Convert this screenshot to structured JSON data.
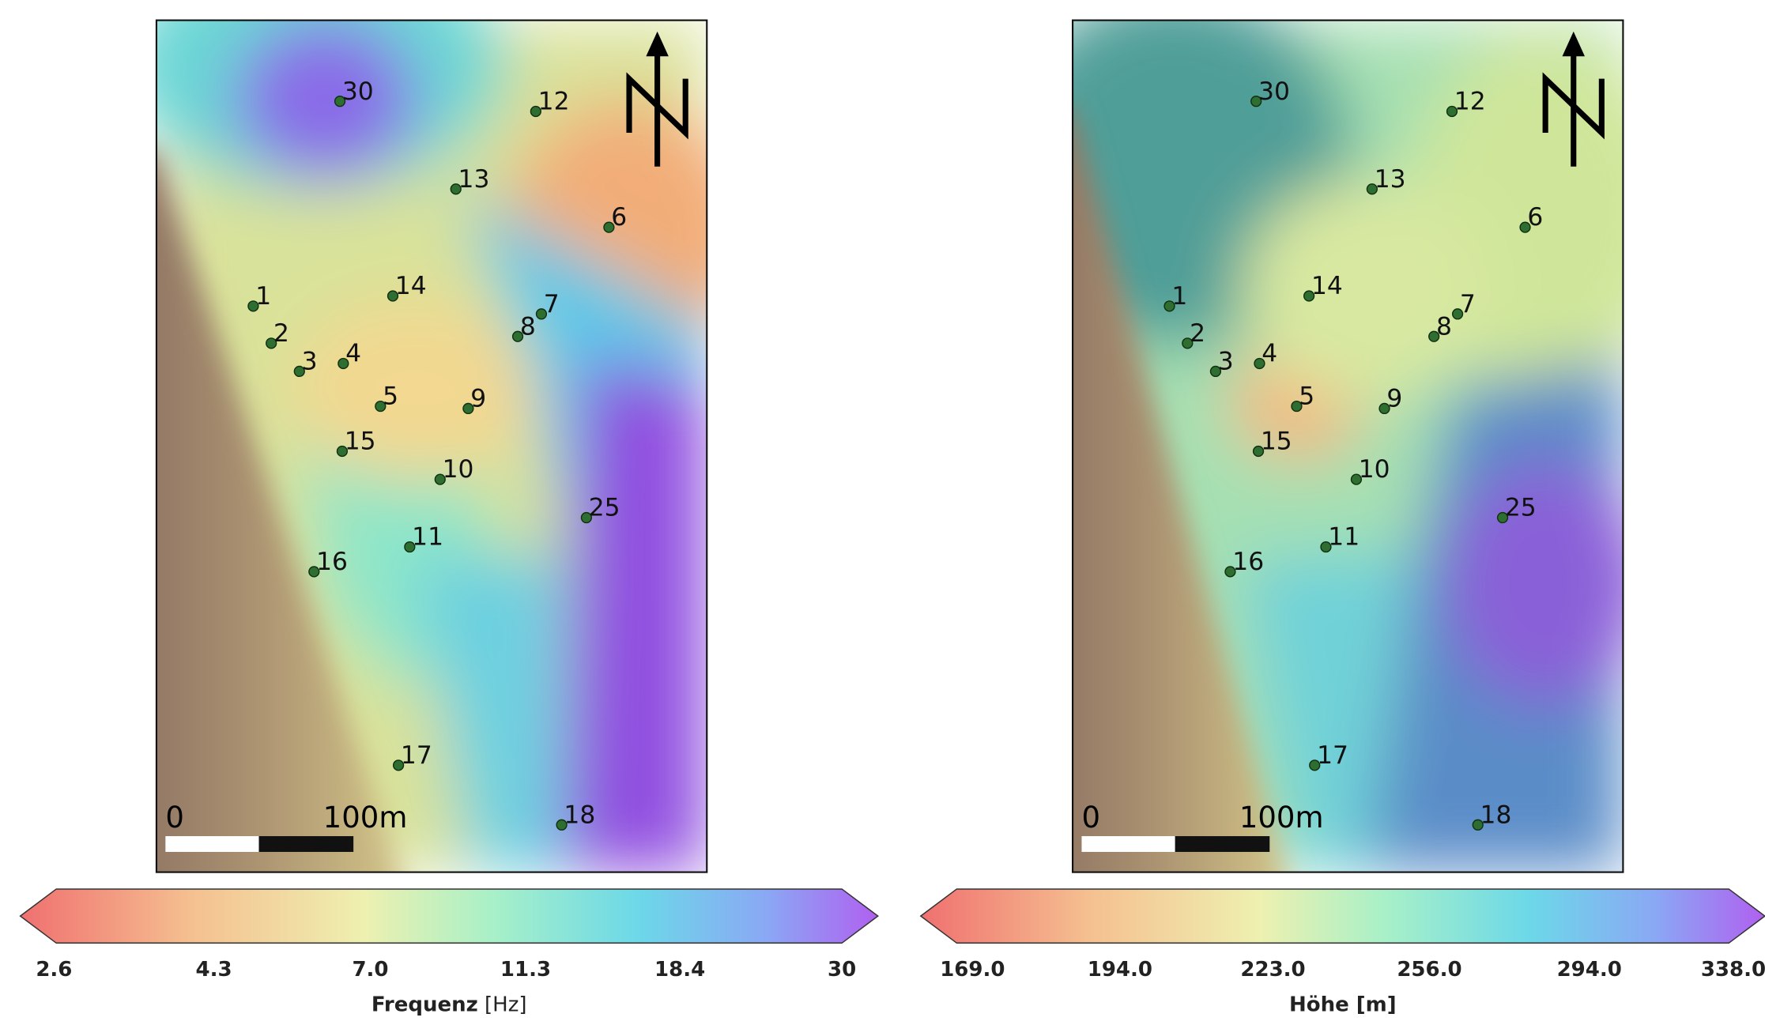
{
  "maps": [
    {
      "stations": [
        "30",
        "12",
        "13",
        "6",
        "1",
        "14",
        "7",
        "8",
        "2",
        "3",
        "4",
        "5",
        "9",
        "15",
        "10",
        "25",
        "11",
        "16",
        "17",
        "18"
      ],
      "scale_bar": {
        "start": "0",
        "end": "100m"
      },
      "colorbar": {
        "ticks": [
          "2.6",
          "4.3",
          "7.0",
          "11.3",
          "18.4",
          "30"
        ],
        "title": "Frequenz",
        "unit": "[Hz]"
      }
    },
    {
      "stations": [
        "30",
        "12",
        "13",
        "6",
        "1",
        "14",
        "7",
        "8",
        "2",
        "3",
        "4",
        "5",
        "9",
        "15",
        "10",
        "25",
        "11",
        "16",
        "17",
        "18"
      ],
      "scale_bar": {
        "start": "0",
        "end": "100m"
      },
      "colorbar": {
        "ticks": [
          "169.0",
          "194.0",
          "223.0",
          "256.0",
          "294.0",
          "338.0"
        ],
        "title": "Höhe [m]"
      }
    }
  ]
}
